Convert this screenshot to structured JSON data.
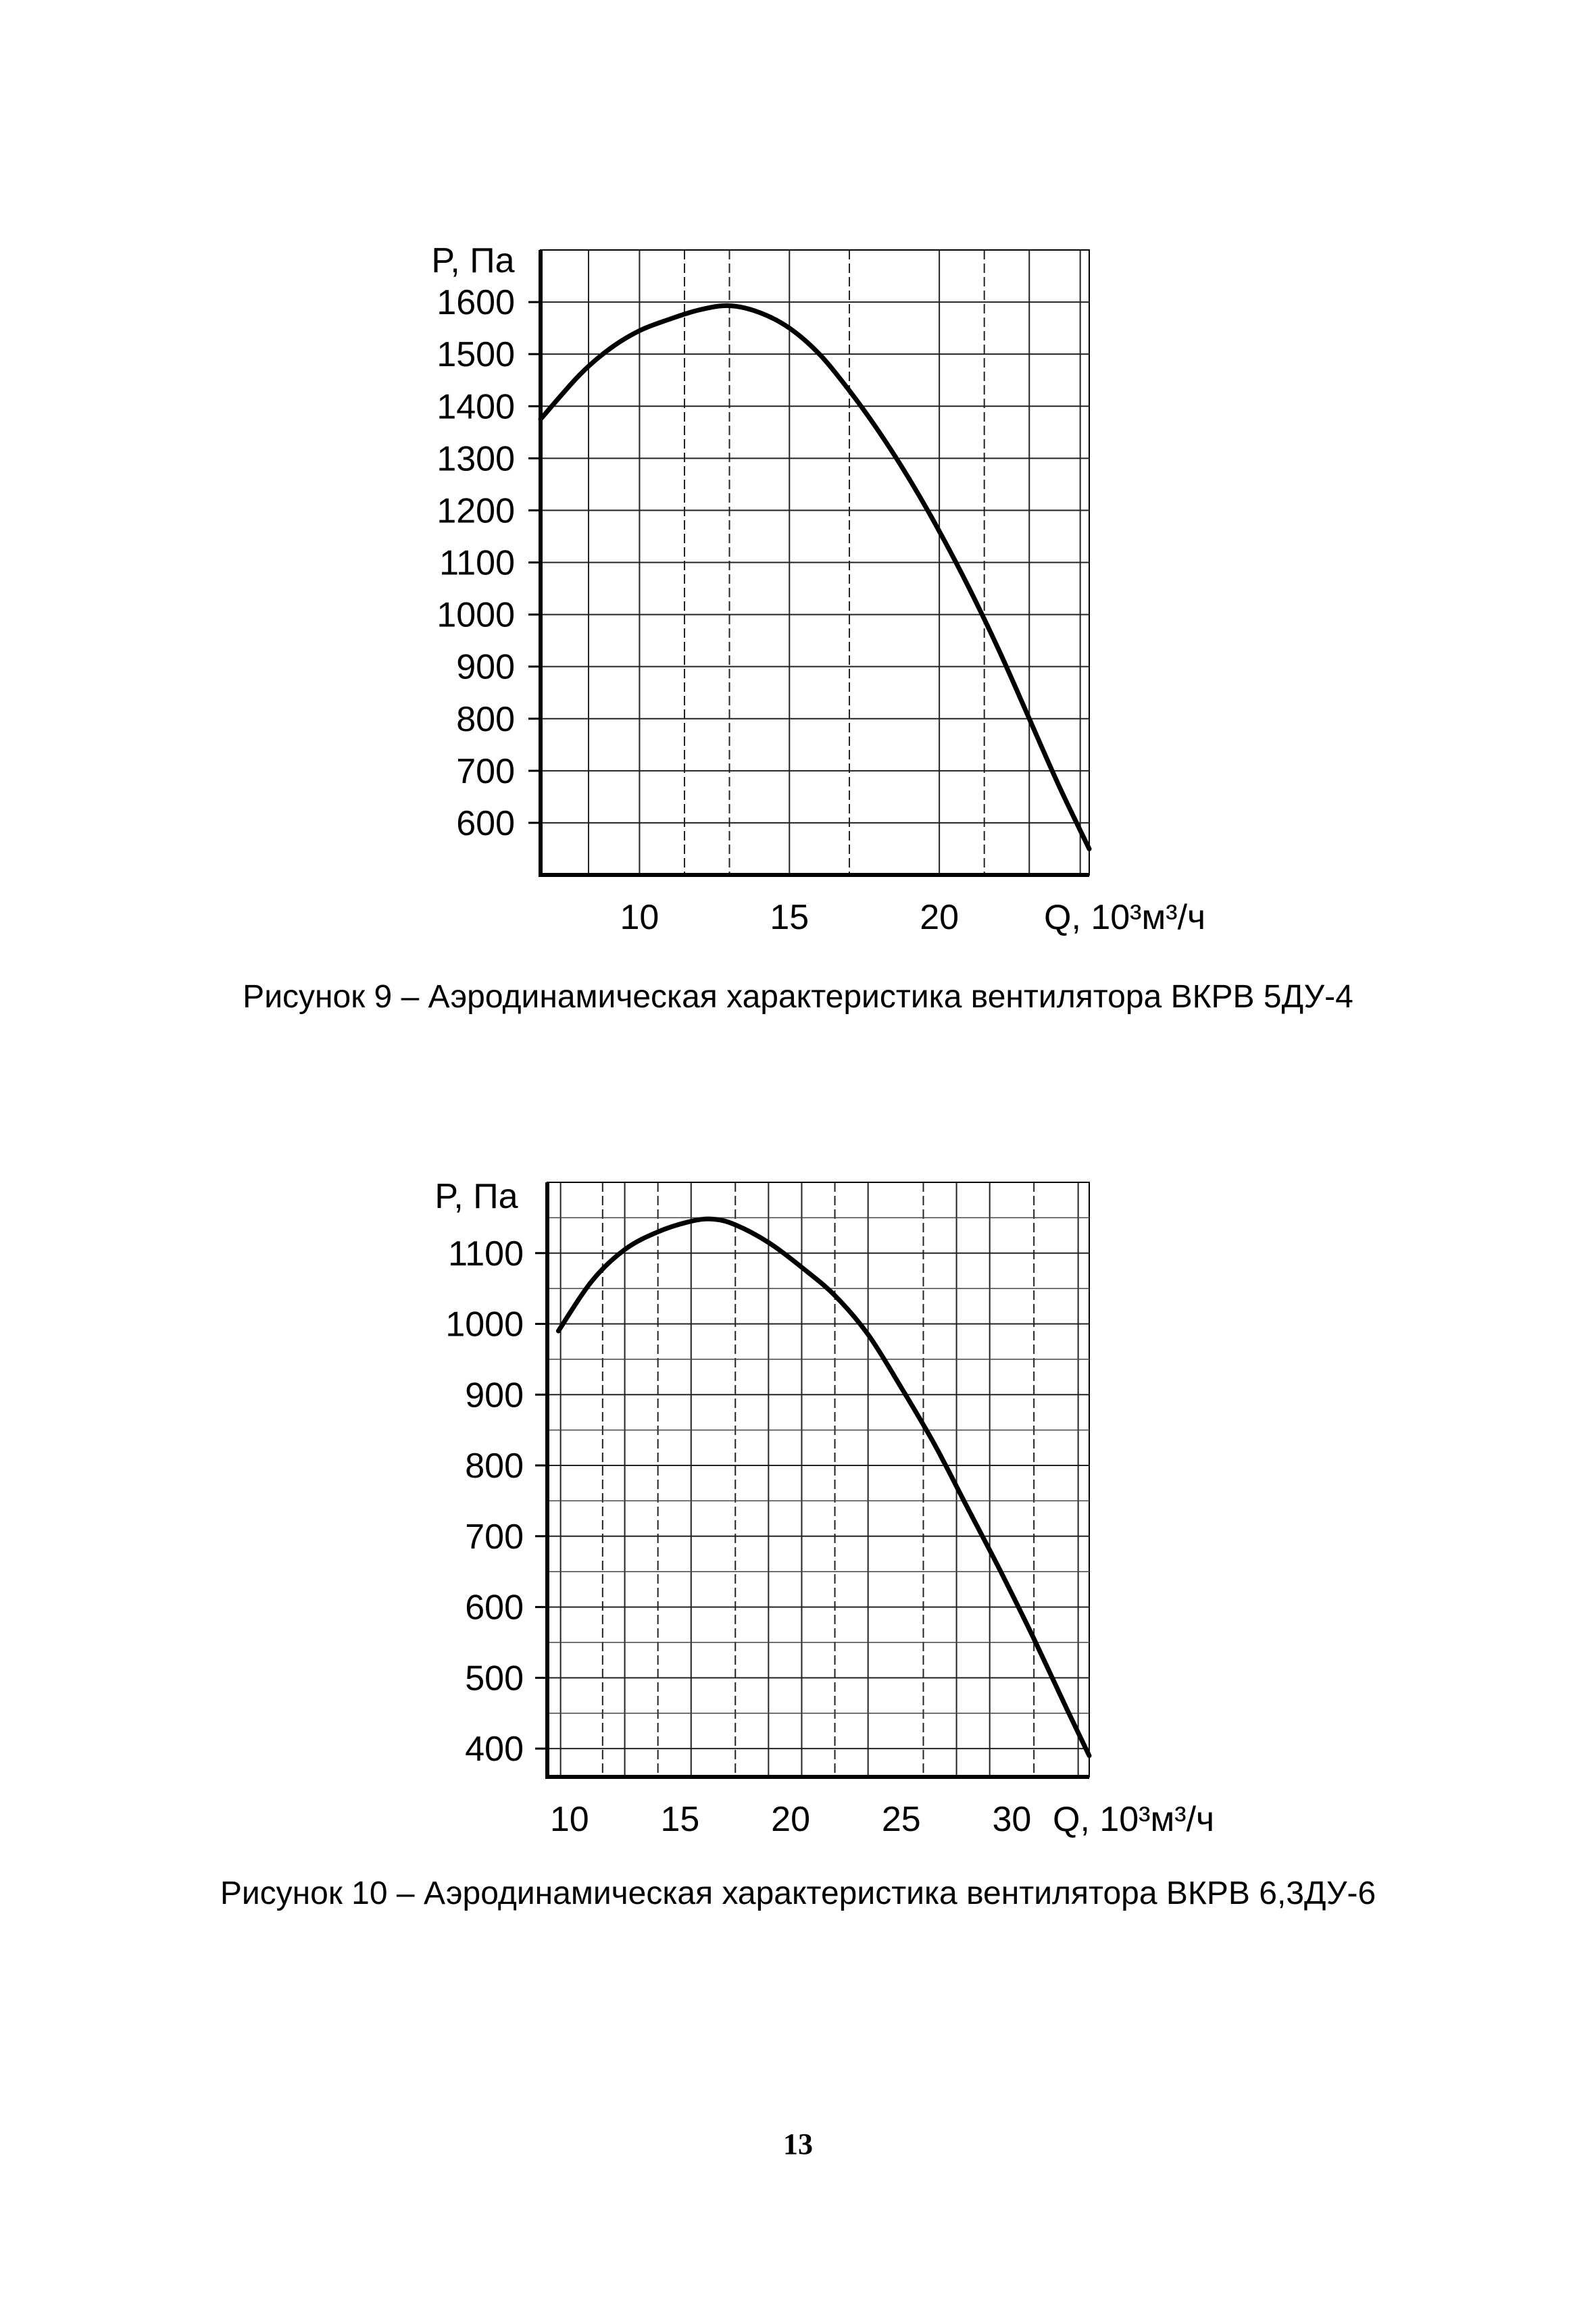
{
  "chart_data": [
    {
      "type": "line",
      "ylabel": "P, Па",
      "xlabel": "Q, 10³м³/ч",
      "x_ticks": [
        10,
        15,
        20
      ],
      "y_ticks": [
        600,
        700,
        800,
        900,
        1000,
        1100,
        1200,
        1300,
        1400,
        1500,
        1600
      ],
      "xlim": [
        6.7,
        25.0
      ],
      "ylim": [
        500,
        1700
      ],
      "series": [
        {
          "name": "ВКРВ 5ДУ-4",
          "x": [
            6.7,
            8.0,
            9.0,
            10.0,
            11.0,
            12.0,
            13.0,
            14.0,
            15.0,
            16.0,
            17.0,
            18.0,
            19.0,
            20.0,
            21.0,
            22.0,
            23.0,
            24.0,
            25.0
          ],
          "y": [
            1375,
            1460,
            1510,
            1545,
            1567,
            1585,
            1593,
            1580,
            1550,
            1500,
            1430,
            1350,
            1260,
            1160,
            1050,
            930,
            800,
            670,
            550
          ]
        }
      ],
      "caption": "Рисунок 9 – Аэродинамическая характеристика вентилятора ВКРВ 5ДУ-4"
    },
    {
      "type": "line",
      "ylabel": "P, Па",
      "xlabel": "Q, 10³м³/ч",
      "x_ticks": [
        10,
        15,
        20,
        25,
        30
      ],
      "y_ticks": [
        400,
        500,
        600,
        700,
        800,
        900,
        1000,
        1100
      ],
      "xlim": [
        9.0,
        33.5
      ],
      "ylim": [
        360,
        1200
      ],
      "series": [
        {
          "name": "ВКРВ 6,3ДУ-6",
          "x": [
            9.5,
            11.0,
            12.5,
            14.0,
            15.5,
            16.5,
            17.5,
            19.0,
            20.5,
            22.0,
            23.5,
            25.0,
            26.5,
            28.0,
            29.5,
            31.0,
            32.5,
            33.5
          ],
          "y": [
            990,
            1060,
            1105,
            1130,
            1145,
            1148,
            1140,
            1115,
            1080,
            1040,
            985,
            910,
            830,
            740,
            650,
            555,
            455,
            390
          ]
        }
      ],
      "caption": "Рисунок 10 – Аэродинамическая характеристика вентилятора ВКРВ 6,3ДУ-6"
    }
  ],
  "page_number": "13"
}
